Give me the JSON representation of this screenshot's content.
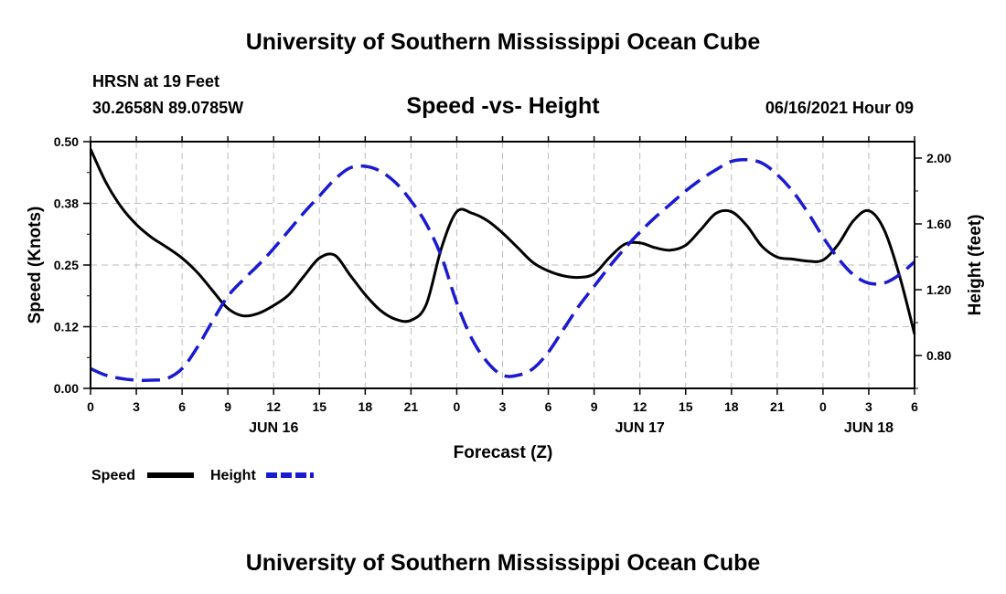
{
  "header": {
    "title_top": "University of Southern Mississippi Ocean Cube",
    "title_bottom": "University of Southern Mississippi Ocean Cube",
    "station": "HRSN at 19 Feet",
    "coords": "30.2658N  89.0785W",
    "datetime": "06/16/2021 Hour 09"
  },
  "chart_data": {
    "type": "line",
    "title": "Speed -vs- Height",
    "xlabel": "Forecast (Z)",
    "ylabel_left": "Speed (Knots)",
    "ylabel_right": "Height (feet)",
    "x_range_hours": [
      0,
      54
    ],
    "x_tick_hours": [
      0,
      3,
      6,
      9,
      12,
      15,
      18,
      21,
      24,
      27,
      30,
      33,
      36,
      39,
      42,
      45,
      48,
      51,
      54
    ],
    "x_tick_labels": [
      "0",
      "3",
      "6",
      "9",
      "12",
      "15",
      "18",
      "21",
      "0",
      "3",
      "6",
      "9",
      "12",
      "15",
      "18",
      "21",
      "0",
      "3",
      "6"
    ],
    "date_labels": [
      {
        "text": "JUN 16",
        "hour": 12
      },
      {
        "text": "JUN 17",
        "hour": 36
      },
      {
        "text": "JUN 18",
        "hour": 51
      }
    ],
    "y_left": {
      "range": [
        0,
        0.5
      ],
      "ticks": [
        0,
        0.125,
        0.25,
        0.375,
        0.5
      ],
      "tick_labels": [
        "0.00",
        "0.12",
        "0.25",
        "0.38",
        "0.50"
      ]
    },
    "y_right": {
      "range": [
        0.6,
        2.1
      ],
      "ticks": [
        0.8,
        1.2,
        1.6,
        2.0
      ],
      "tick_labels": [
        "0.80",
        "1.20",
        "1.60",
        "2.00"
      ]
    },
    "grid": true,
    "legend": [
      {
        "name": "Speed",
        "color": "#000000",
        "style": "solid"
      },
      {
        "name": "Height",
        "color": "#1a1ad1",
        "style": "dashed"
      }
    ],
    "series": [
      {
        "name": "Speed",
        "axis": "left",
        "color": "#000000",
        "x": [
          0,
          1,
          2,
          3,
          4,
          5,
          6,
          7,
          8,
          9,
          10,
          11,
          12,
          13,
          14,
          15,
          16,
          17,
          18,
          19,
          20,
          21,
          22,
          23,
          24,
          25,
          26,
          27,
          28,
          29,
          30,
          31,
          32,
          33,
          34,
          35,
          36,
          37,
          38,
          39,
          40,
          41,
          42,
          43,
          44,
          45,
          46,
          47,
          48,
          49,
          50,
          51,
          52,
          53,
          54
        ],
        "values": [
          0.485,
          0.418,
          0.368,
          0.332,
          0.306,
          0.286,
          0.264,
          0.235,
          0.198,
          0.162,
          0.147,
          0.152,
          0.168,
          0.19,
          0.228,
          0.264,
          0.27,
          0.23,
          0.19,
          0.158,
          0.14,
          0.138,
          0.17,
          0.285,
          0.358,
          0.355,
          0.34,
          0.315,
          0.285,
          0.255,
          0.238,
          0.228,
          0.225,
          0.232,
          0.265,
          0.292,
          0.295,
          0.285,
          0.28,
          0.29,
          0.322,
          0.355,
          0.358,
          0.33,
          0.288,
          0.266,
          0.262,
          0.258,
          0.26,
          0.292,
          0.34,
          0.36,
          0.322,
          0.23,
          0.11
        ]
      },
      {
        "name": "Height",
        "axis": "right",
        "color": "#1a1ad1",
        "x": [
          0,
          1,
          2,
          3,
          4,
          5,
          6,
          7,
          8,
          9,
          10,
          11,
          12,
          13,
          14,
          15,
          16,
          17,
          18,
          19,
          20,
          21,
          22,
          23,
          24,
          25,
          26,
          27,
          28,
          29,
          30,
          31,
          32,
          33,
          34,
          35,
          36,
          37,
          38,
          39,
          40,
          41,
          42,
          43,
          44,
          45,
          46,
          47,
          48,
          49,
          50,
          51,
          52,
          53,
          54
        ],
        "values": [
          0.72,
          0.68,
          0.66,
          0.65,
          0.65,
          0.66,
          0.72,
          0.85,
          1.01,
          1.16,
          1.26,
          1.35,
          1.45,
          1.56,
          1.67,
          1.77,
          1.87,
          1.94,
          1.95,
          1.92,
          1.85,
          1.74,
          1.6,
          1.4,
          1.12,
          0.9,
          0.76,
          0.68,
          0.68,
          0.72,
          0.82,
          0.96,
          1.1,
          1.22,
          1.34,
          1.45,
          1.55,
          1.64,
          1.72,
          1.8,
          1.87,
          1.93,
          1.98,
          1.99,
          1.97,
          1.9,
          1.8,
          1.67,
          1.52,
          1.39,
          1.29,
          1.24,
          1.24,
          1.29,
          1.37
        ]
      }
    ]
  }
}
